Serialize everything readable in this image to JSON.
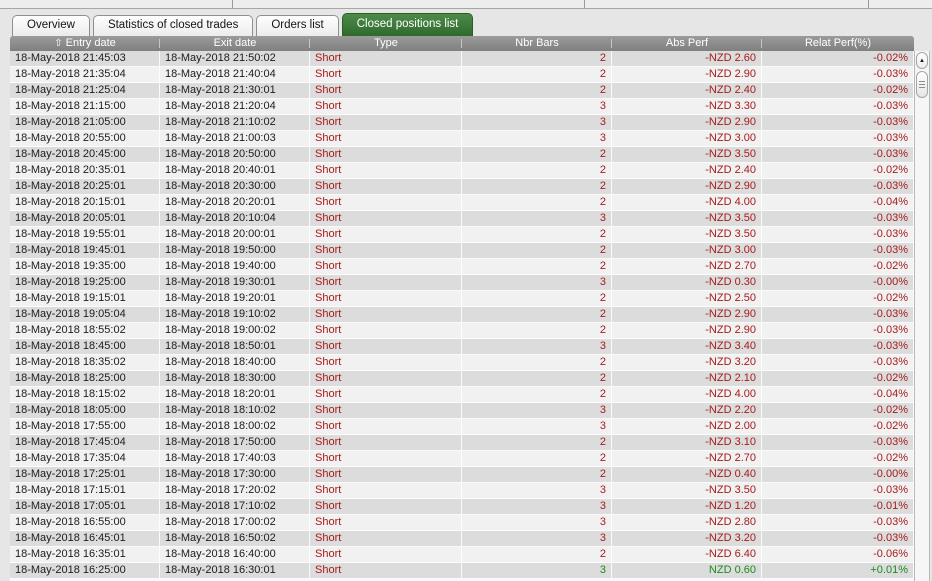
{
  "tabs": [
    {
      "label": "Overview",
      "active": false
    },
    {
      "label": "Statistics of closed trades",
      "active": false
    },
    {
      "label": "Orders list",
      "active": false
    },
    {
      "label": "Closed positions list",
      "active": true
    }
  ],
  "icons": {
    "sort_ascending": "⇧",
    "scroll_up": "▲"
  },
  "colors": {
    "active_tab_green": "#3c783c",
    "header_gray": "#8b8b8b",
    "negative_red": "#a61c1c",
    "positive_green": "#1d8a1d",
    "row_odd": "#dcdcdc",
    "row_even": "#f1f1f1"
  },
  "table": {
    "columns": [
      {
        "label": "Entry date"
      },
      {
        "label": "Exit date"
      },
      {
        "label": "Type"
      },
      {
        "label": "Nbr Bars"
      },
      {
        "label": "Abs Perf"
      },
      {
        "label": "Relat Perf(%)"
      }
    ],
    "rows": [
      {
        "entry": "18-May-2018 21:45:03",
        "exit": "18-May-2018 21:50:02",
        "type": "Short",
        "bars": "2",
        "abs": "-NZD 2.60",
        "relat": "-0.02%",
        "positive": false
      },
      {
        "entry": "18-May-2018 21:35:04",
        "exit": "18-May-2018 21:40:04",
        "type": "Short",
        "bars": "2",
        "abs": "-NZD 2.90",
        "relat": "-0.03%",
        "positive": false
      },
      {
        "entry": "18-May-2018 21:25:04",
        "exit": "18-May-2018 21:30:01",
        "type": "Short",
        "bars": "2",
        "abs": "-NZD 2.40",
        "relat": "-0.02%",
        "positive": false
      },
      {
        "entry": "18-May-2018 21:15:00",
        "exit": "18-May-2018 21:20:04",
        "type": "Short",
        "bars": "3",
        "abs": "-NZD 3.30",
        "relat": "-0.03%",
        "positive": false
      },
      {
        "entry": "18-May-2018 21:05:00",
        "exit": "18-May-2018 21:10:02",
        "type": "Short",
        "bars": "3",
        "abs": "-NZD 2.90",
        "relat": "-0.03%",
        "positive": false
      },
      {
        "entry": "18-May-2018 20:55:00",
        "exit": "18-May-2018 21:00:03",
        "type": "Short",
        "bars": "3",
        "abs": "-NZD 3.00",
        "relat": "-0.03%",
        "positive": false
      },
      {
        "entry": "18-May-2018 20:45:00",
        "exit": "18-May-2018 20:50:00",
        "type": "Short",
        "bars": "2",
        "abs": "-NZD 3.50",
        "relat": "-0.03%",
        "positive": false
      },
      {
        "entry": "18-May-2018 20:35:01",
        "exit": "18-May-2018 20:40:01",
        "type": "Short",
        "bars": "2",
        "abs": "-NZD 2.40",
        "relat": "-0.02%",
        "positive": false
      },
      {
        "entry": "18-May-2018 20:25:01",
        "exit": "18-May-2018 20:30:00",
        "type": "Short",
        "bars": "2",
        "abs": "-NZD 2.90",
        "relat": "-0.03%",
        "positive": false
      },
      {
        "entry": "18-May-2018 20:15:01",
        "exit": "18-May-2018 20:20:01",
        "type": "Short",
        "bars": "2",
        "abs": "-NZD 4.00",
        "relat": "-0.04%",
        "positive": false
      },
      {
        "entry": "18-May-2018 20:05:01",
        "exit": "18-May-2018 20:10:04",
        "type": "Short",
        "bars": "3",
        "abs": "-NZD 3.50",
        "relat": "-0.03%",
        "positive": false
      },
      {
        "entry": "18-May-2018 19:55:01",
        "exit": "18-May-2018 20:00:01",
        "type": "Short",
        "bars": "2",
        "abs": "-NZD 3.50",
        "relat": "-0.03%",
        "positive": false
      },
      {
        "entry": "18-May-2018 19:45:01",
        "exit": "18-May-2018 19:50:00",
        "type": "Short",
        "bars": "2",
        "abs": "-NZD 3.00",
        "relat": "-0.03%",
        "positive": false
      },
      {
        "entry": "18-May-2018 19:35:00",
        "exit": "18-May-2018 19:40:00",
        "type": "Short",
        "bars": "2",
        "abs": "-NZD 2.70",
        "relat": "-0.02%",
        "positive": false
      },
      {
        "entry": "18-May-2018 19:25:00",
        "exit": "18-May-2018 19:30:01",
        "type": "Short",
        "bars": "3",
        "abs": "-NZD 0.30",
        "relat": "-0.00%",
        "positive": false
      },
      {
        "entry": "18-May-2018 19:15:01",
        "exit": "18-May-2018 19:20:01",
        "type": "Short",
        "bars": "2",
        "abs": "-NZD 2.50",
        "relat": "-0.02%",
        "positive": false
      },
      {
        "entry": "18-May-2018 19:05:04",
        "exit": "18-May-2018 19:10:02",
        "type": "Short",
        "bars": "2",
        "abs": "-NZD 2.90",
        "relat": "-0.03%",
        "positive": false
      },
      {
        "entry": "18-May-2018 18:55:02",
        "exit": "18-May-2018 19:00:02",
        "type": "Short",
        "bars": "2",
        "abs": "-NZD 2.90",
        "relat": "-0.03%",
        "positive": false
      },
      {
        "entry": "18-May-2018 18:45:00",
        "exit": "18-May-2018 18:50:01",
        "type": "Short",
        "bars": "3",
        "abs": "-NZD 3.40",
        "relat": "-0.03%",
        "positive": false
      },
      {
        "entry": "18-May-2018 18:35:02",
        "exit": "18-May-2018 18:40:00",
        "type": "Short",
        "bars": "2",
        "abs": "-NZD 3.20",
        "relat": "-0.03%",
        "positive": false
      },
      {
        "entry": "18-May-2018 18:25:00",
        "exit": "18-May-2018 18:30:00",
        "type": "Short",
        "bars": "2",
        "abs": "-NZD 2.10",
        "relat": "-0.02%",
        "positive": false
      },
      {
        "entry": "18-May-2018 18:15:02",
        "exit": "18-May-2018 18:20:01",
        "type": "Short",
        "bars": "2",
        "abs": "-NZD 4.00",
        "relat": "-0.04%",
        "positive": false
      },
      {
        "entry": "18-May-2018 18:05:00",
        "exit": "18-May-2018 18:10:02",
        "type": "Short",
        "bars": "3",
        "abs": "-NZD 2.20",
        "relat": "-0.02%",
        "positive": false
      },
      {
        "entry": "18-May-2018 17:55:00",
        "exit": "18-May-2018 18:00:02",
        "type": "Short",
        "bars": "3",
        "abs": "-NZD 2.00",
        "relat": "-0.02%",
        "positive": false
      },
      {
        "entry": "18-May-2018 17:45:04",
        "exit": "18-May-2018 17:50:00",
        "type": "Short",
        "bars": "2",
        "abs": "-NZD 3.10",
        "relat": "-0.03%",
        "positive": false
      },
      {
        "entry": "18-May-2018 17:35:04",
        "exit": "18-May-2018 17:40:03",
        "type": "Short",
        "bars": "2",
        "abs": "-NZD 2.70",
        "relat": "-0.02%",
        "positive": false
      },
      {
        "entry": "18-May-2018 17:25:01",
        "exit": "18-May-2018 17:30:00",
        "type": "Short",
        "bars": "2",
        "abs": "-NZD 0.40",
        "relat": "-0.00%",
        "positive": false
      },
      {
        "entry": "18-May-2018 17:15:01",
        "exit": "18-May-2018 17:20:02",
        "type": "Short",
        "bars": "3",
        "abs": "-NZD 3.50",
        "relat": "-0.03%",
        "positive": false
      },
      {
        "entry": "18-May-2018 17:05:01",
        "exit": "18-May-2018 17:10:02",
        "type": "Short",
        "bars": "3",
        "abs": "-NZD 1.20",
        "relat": "-0.01%",
        "positive": false
      },
      {
        "entry": "18-May-2018 16:55:00",
        "exit": "18-May-2018 17:00:02",
        "type": "Short",
        "bars": "3",
        "abs": "-NZD 2.80",
        "relat": "-0.03%",
        "positive": false
      },
      {
        "entry": "18-May-2018 16:45:01",
        "exit": "18-May-2018 16:50:02",
        "type": "Short",
        "bars": "3",
        "abs": "-NZD 3.20",
        "relat": "-0.03%",
        "positive": false
      },
      {
        "entry": "18-May-2018 16:35:01",
        "exit": "18-May-2018 16:40:00",
        "type": "Short",
        "bars": "2",
        "abs": "-NZD 6.40",
        "relat": "-0.06%",
        "positive": false
      },
      {
        "entry": "18-May-2018 16:25:00",
        "exit": "18-May-2018 16:30:01",
        "type": "Short",
        "bars": "3",
        "abs": "NZD 0.60",
        "relat": "+0.01%",
        "positive": true
      }
    ]
  }
}
